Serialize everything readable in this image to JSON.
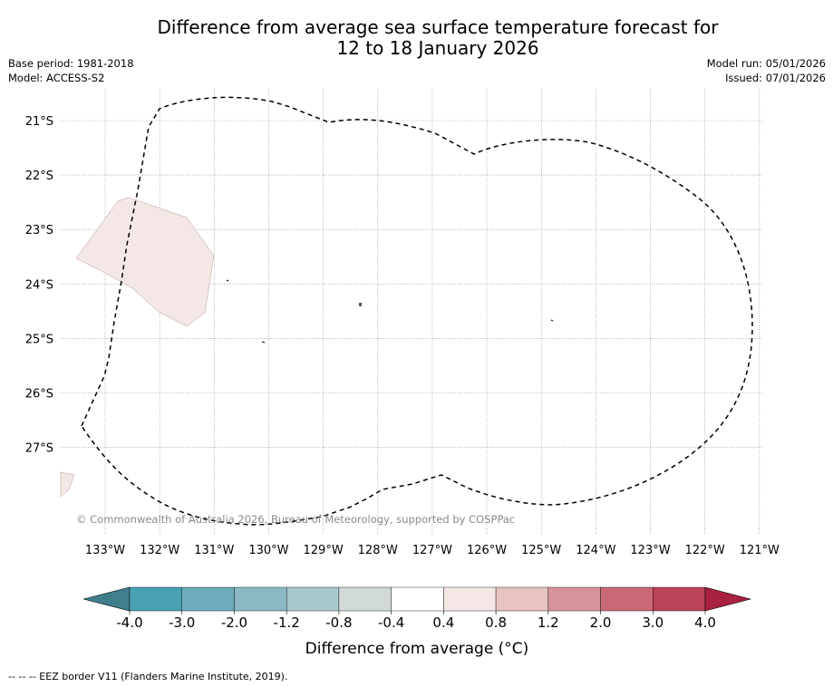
{
  "title": {
    "line1": "Difference from average sea surface temperature forecast for",
    "line2": "12 to 18 January 2026"
  },
  "meta": {
    "base_period": "Base period: 1981-2018",
    "model": "Model: ACCESS-S2",
    "model_run": "Model run: 05/01/2026",
    "issued": "Issued: 07/01/2026"
  },
  "map": {
    "latitude_labels": [
      "21°S",
      "22°S",
      "23°S",
      "24°S",
      "25°S",
      "26°S",
      "27°S"
    ],
    "longitude_labels": [
      "133°W",
      "132°W",
      "131°W",
      "130°W",
      "129°W",
      "128°W",
      "127°W",
      "126°W",
      "125°W",
      "124°W",
      "123°W",
      "122°W",
      "121°W"
    ],
    "copyright": "© Commonwealth of Australia 2026, Bureau of Meteorology, supported by COSPPac",
    "anomaly_fill_color": "#f3e8e6",
    "eez_line_color": "#000000"
  },
  "colorbar": {
    "label": "Difference from average (°C)",
    "tick_labels": [
      "-4.0",
      "-3.0",
      "-2.0",
      "-1.2",
      "-0.8",
      "-0.4",
      "0.4",
      "0.8",
      "1.2",
      "2.0",
      "3.0",
      "4.0"
    ],
    "colors": {
      "below_min": "#3f7f8c",
      "bins": [
        "#48a0b3",
        "#6cacba",
        "#8ab8c3",
        "#a9c8cd",
        "#d2d9d9",
        "#ffffff",
        "#f3e8e6",
        "#e7c4c1",
        "#d8929a",
        "#c96976",
        "#bb4357"
      ],
      "above_max": "#a8213f"
    }
  },
  "footnote": "--  --  -- EEZ border V11 (Flanders Marine Institute, 2019)."
}
